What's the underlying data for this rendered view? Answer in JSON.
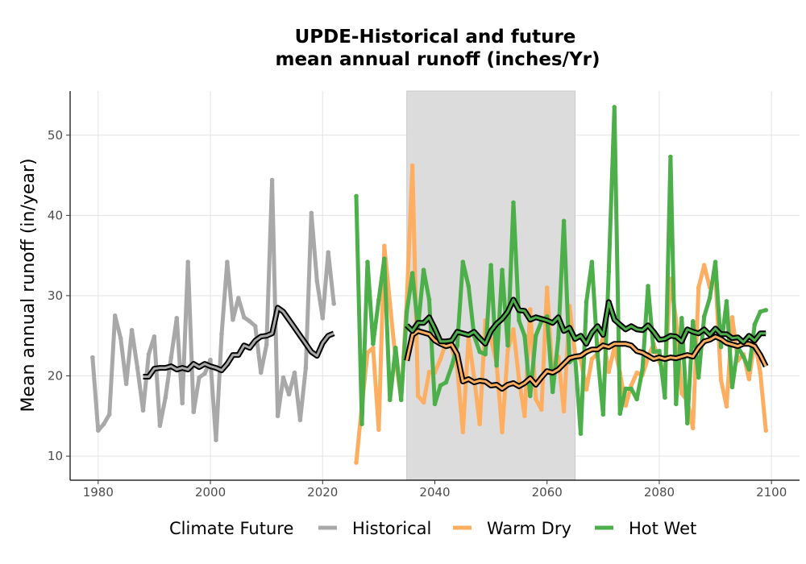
{
  "chart_data": {
    "type": "line",
    "title": [
      "UPDE-Historical and future",
      "mean annual runoff (inches/Yr)"
    ],
    "xlabel": "",
    "ylabel": "Mean annual runoff (in/year)",
    "xlim": [
      1975,
      2105
    ],
    "ylim": [
      7,
      55.5
    ],
    "xticks": [
      1980,
      2000,
      2020,
      2040,
      2060,
      2080,
      2100
    ],
    "yticks": [
      10,
      20,
      30,
      40,
      50
    ],
    "grid": true,
    "legend": {
      "title": "Climate Future",
      "placement": "bottom"
    },
    "shaded_period": {
      "x": [
        2035,
        2065
      ],
      "color": "#dcdcdc"
    },
    "colors": {
      "Historical": "#a8a8a8",
      "Warm Dry": "#fdae61",
      "Hot Wet": "#4daf4a",
      "smooth": "#000000"
    },
    "series": [
      {
        "name": "Historical",
        "x": [
          1979,
          1980,
          1981,
          1982,
          1983,
          1984,
          1985,
          1986,
          1987,
          1988,
          1989,
          1990,
          1991,
          1992,
          1993,
          1994,
          1995,
          1996,
          1997,
          1998,
          1999,
          2000,
          2001,
          2002,
          2003,
          2004,
          2005,
          2006,
          2007,
          2008,
          2009,
          2010,
          2011,
          2012,
          2013,
          2014,
          2015,
          2016,
          2017,
          2018,
          2019,
          2020,
          2021,
          2022
        ],
        "values": [
          22.3,
          13.2,
          14,
          15.2,
          27.5,
          24.7,
          19,
          25.7,
          21,
          15.7,
          22.7,
          24.9,
          13.8,
          17.3,
          22.3,
          27.2,
          16.6,
          34.2,
          15.5,
          19.8,
          20.3,
          22,
          12,
          25.2,
          34.2,
          27,
          29.7,
          27.3,
          26.8,
          26.2,
          20.4,
          23.9,
          44.4,
          15,
          19.8,
          17.7,
          20.4,
          14.5,
          21,
          40.3,
          31.8,
          27.2,
          35.4,
          29
        ],
        "smooth_x": [
          1988,
          1989,
          1990,
          1991,
          1992,
          1993,
          1994,
          1995,
          1996,
          1997,
          1998,
          1999,
          2000,
          2001,
          2002,
          2003,
          2004,
          2005,
          2006,
          2007,
          2008,
          2009,
          2010,
          2011,
          2012,
          2013,
          2014,
          2015,
          2016,
          2017,
          2018,
          2019,
          2020,
          2021,
          2022
        ],
        "smooth_values": [
          19.9,
          19.9,
          20.9,
          21,
          21,
          21.2,
          20.8,
          21,
          20.8,
          21.5,
          21.1,
          21.5,
          21.2,
          21,
          20.7,
          21.5,
          22.6,
          22.6,
          23.8,
          23.5,
          24.4,
          24.9,
          25,
          25.3,
          28.5,
          28,
          27,
          26,
          25,
          24,
          23,
          22.5,
          24.1,
          25,
          25.3
        ]
      },
      {
        "name": "Warm Dry",
        "x": [
          2026,
          2027,
          2028,
          2029,
          2030,
          2031,
          2032,
          2033,
          2034,
          2035,
          2036,
          2037,
          2038,
          2039,
          2040,
          2041,
          2042,
          2043,
          2044,
          2045,
          2046,
          2047,
          2048,
          2049,
          2050,
          2051,
          2052,
          2053,
          2054,
          2055,
          2056,
          2057,
          2058,
          2059,
          2060,
          2061,
          2062,
          2063,
          2064,
          2065,
          2066,
          2067,
          2068,
          2069,
          2070,
          2071,
          2072,
          2073,
          2074,
          2075,
          2076,
          2077,
          2078,
          2079,
          2080,
          2081,
          2082,
          2083,
          2084,
          2085,
          2086,
          2087,
          2088,
          2089,
          2090,
          2091,
          2092,
          2093,
          2094,
          2095,
          2096,
          2097,
          2098,
          2099
        ],
        "values": [
          9.2,
          16.3,
          22.9,
          23.5,
          13.3,
          36.2,
          29,
          22,
          17.2,
          29.4,
          46.2,
          17.5,
          16.7,
          20.5,
          20.4,
          22.1,
          24.2,
          23.5,
          21,
          13,
          24.8,
          19.8,
          14,
          26.9,
          24.6,
          21.6,
          13,
          23.2,
          25.8,
          19.6,
          15,
          28.3,
          17.1,
          15.8,
          31,
          19.6,
          22.4,
          15.6,
          28.7,
          22.7,
          22,
          18.3,
          22.1,
          22.8,
          24.8,
          20.5,
          23.6,
          20.4,
          16.3,
          18.8,
          20.4,
          20.1,
          22.3,
          24,
          21.8,
          20.1,
          32.1,
          27,
          17.8,
          16.9,
          13.5,
          31,
          33.8,
          31,
          32.4,
          19.5,
          16.2,
          27.3,
          21.9,
          22.7,
          19.6,
          24.4,
          20.4,
          13.2
        ],
        "smooth_x": [
          2035,
          2036,
          2037,
          2038,
          2039,
          2040,
          2041,
          2042,
          2043,
          2044,
          2045,
          2046,
          2047,
          2048,
          2049,
          2050,
          2051,
          2052,
          2053,
          2054,
          2055,
          2056,
          2057,
          2058,
          2059,
          2060,
          2061,
          2062,
          2063,
          2064,
          2065,
          2066,
          2067,
          2068,
          2069,
          2070,
          2071,
          2072,
          2073,
          2074,
          2075,
          2076,
          2077,
          2078,
          2079,
          2080,
          2081,
          2082,
          2083,
          2084,
          2085,
          2086,
          2087,
          2088,
          2089,
          2090,
          2091,
          2092,
          2093,
          2094,
          2095,
          2096,
          2097,
          2098,
          2099
        ],
        "smooth_values": [
          21.9,
          25.1,
          25.6,
          25.4,
          25.2,
          24.4,
          24,
          23.7,
          23.9,
          22.7,
          19.3,
          19.6,
          19.2,
          19.4,
          19.3,
          18.8,
          18.9,
          18.4,
          18.9,
          19.1,
          18.7,
          19.1,
          19.7,
          18.9,
          19.8,
          20.6,
          20.4,
          20.8,
          21.5,
          22.2,
          22.4,
          22.5,
          23,
          23.3,
          23.3,
          23.8,
          23.6,
          24,
          24,
          24,
          23.8,
          23.1,
          22.9,
          22.5,
          22.1,
          22.3,
          22.1,
          22.3,
          22.2,
          22.4,
          22.6,
          22.4,
          23.5,
          24.3,
          24.5,
          24.9,
          24.6,
          24.1,
          23.9,
          23.7,
          24,
          24,
          23.7,
          22.6,
          21.2
        ]
      },
      {
        "name": "Hot Wet",
        "x": [
          2026,
          2027,
          2028,
          2029,
          2030,
          2031,
          2032,
          2033,
          2034,
          2035,
          2036,
          2037,
          2038,
          2039,
          2040,
          2041,
          2042,
          2043,
          2044,
          2045,
          2046,
          2047,
          2048,
          2049,
          2050,
          2051,
          2052,
          2053,
          2054,
          2055,
          2056,
          2057,
          2058,
          2059,
          2060,
          2061,
          2062,
          2063,
          2064,
          2065,
          2066,
          2067,
          2068,
          2069,
          2070,
          2071,
          2072,
          2073,
          2074,
          2075,
          2076,
          2077,
          2078,
          2079,
          2080,
          2081,
          2082,
          2083,
          2084,
          2085,
          2086,
          2087,
          2088,
          2089,
          2090,
          2091,
          2092,
          2093,
          2094,
          2095,
          2096,
          2097,
          2098,
          2099
        ],
        "values": [
          42.4,
          14,
          34.2,
          24,
          29.5,
          34.6,
          17,
          23.5,
          17,
          28,
          32.8,
          26,
          33.2,
          29.5,
          16.5,
          18.8,
          19.2,
          21.2,
          23.8,
          34.2,
          31.2,
          25,
          23,
          22.7,
          33.8,
          21.3,
          33.2,
          23.8,
          41.6,
          26.9,
          25,
          17.5,
          25,
          26.8,
          27.4,
          18,
          24.7,
          39.3,
          21.7,
          22.4,
          12.8,
          29.2,
          34.2,
          22.6,
          15.2,
          33,
          53.5,
          15.3,
          18.4,
          18.4,
          17.1,
          20.8,
          31.2,
          23,
          23.1,
          17.3,
          47.3,
          16.5,
          27.2,
          14.1,
          26.8,
          19.8,
          27.4,
          29.7,
          34.2,
          23.6,
          29.3,
          18.6,
          23.6,
          22.4,
          20.8,
          26.4,
          28,
          28.2
        ],
        "smooth_x": [
          2035,
          2036,
          2037,
          2038,
          2039,
          2040,
          2041,
          2042,
          2043,
          2044,
          2045,
          2046,
          2047,
          2048,
          2049,
          2050,
          2051,
          2052,
          2053,
          2054,
          2055,
          2056,
          2057,
          2058,
          2059,
          2060,
          2061,
          2062,
          2063,
          2064,
          2065,
          2066,
          2067,
          2068,
          2069,
          2070,
          2071,
          2072,
          2073,
          2074,
          2075,
          2076,
          2077,
          2078,
          2079,
          2080,
          2081,
          2082,
          2083,
          2084,
          2085,
          2086,
          2087,
          2088,
          2089,
          2090,
          2091,
          2092,
          2093,
          2094,
          2095,
          2096,
          2097,
          2098,
          2099
        ],
        "smooth_values": [
          26.3,
          25.6,
          26.6,
          26.6,
          27.3,
          25.9,
          24.3,
          24.3,
          24.4,
          25.5,
          25.3,
          25.1,
          25.5,
          24.7,
          24,
          25.6,
          26.5,
          27.1,
          28,
          29.5,
          28.2,
          28.1,
          27,
          27.3,
          27.1,
          26.9,
          26.6,
          27.3,
          25.6,
          26,
          24.6,
          25,
          24,
          25.4,
          26.2,
          25.1,
          29.2,
          27,
          26.4,
          25.8,
          26.2,
          25.8,
          25.7,
          26.3,
          25.5,
          24.5,
          24.6,
          25,
          24.9,
          24.3,
          25.8,
          25.5,
          25.3,
          25.8,
          25.1,
          25.9,
          25.2,
          25.2,
          24.7,
          24.8,
          24.2,
          25,
          24.4,
          25.3,
          25.3
        ]
      }
    ]
  }
}
